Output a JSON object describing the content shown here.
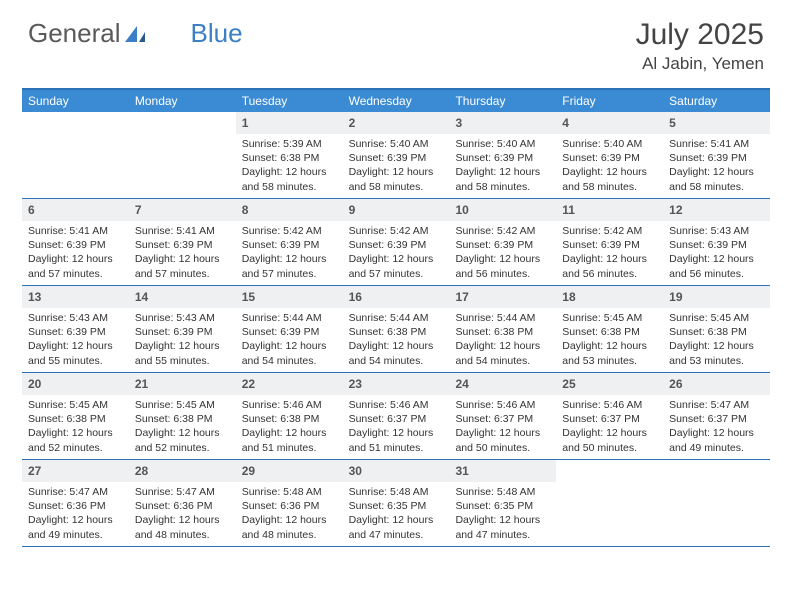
{
  "logo": {
    "text1": "General",
    "text2": "Blue"
  },
  "title": "July 2025",
  "location": "Al Jabin, Yemen",
  "colors": {
    "header_bg": "#3b8bd4",
    "border": "#2a72b5",
    "daynum_bg": "#eef0f2",
    "text": "#333333",
    "logo_gray": "#5a5a5a",
    "logo_blue": "#3b7fc4"
  },
  "weekdays": [
    "Sunday",
    "Monday",
    "Tuesday",
    "Wednesday",
    "Thursday",
    "Friday",
    "Saturday"
  ],
  "weeks": [
    [
      {
        "n": "",
        "sunrise": "",
        "sunset": "",
        "daylight": ""
      },
      {
        "n": "",
        "sunrise": "",
        "sunset": "",
        "daylight": ""
      },
      {
        "n": "1",
        "sunrise": "5:39 AM",
        "sunset": "6:38 PM",
        "daylight": "12 hours and 58 minutes."
      },
      {
        "n": "2",
        "sunrise": "5:40 AM",
        "sunset": "6:39 PM",
        "daylight": "12 hours and 58 minutes."
      },
      {
        "n": "3",
        "sunrise": "5:40 AM",
        "sunset": "6:39 PM",
        "daylight": "12 hours and 58 minutes."
      },
      {
        "n": "4",
        "sunrise": "5:40 AM",
        "sunset": "6:39 PM",
        "daylight": "12 hours and 58 minutes."
      },
      {
        "n": "5",
        "sunrise": "5:41 AM",
        "sunset": "6:39 PM",
        "daylight": "12 hours and 58 minutes."
      }
    ],
    [
      {
        "n": "6",
        "sunrise": "5:41 AM",
        "sunset": "6:39 PM",
        "daylight": "12 hours and 57 minutes."
      },
      {
        "n": "7",
        "sunrise": "5:41 AM",
        "sunset": "6:39 PM",
        "daylight": "12 hours and 57 minutes."
      },
      {
        "n": "8",
        "sunrise": "5:42 AM",
        "sunset": "6:39 PM",
        "daylight": "12 hours and 57 minutes."
      },
      {
        "n": "9",
        "sunrise": "5:42 AM",
        "sunset": "6:39 PM",
        "daylight": "12 hours and 57 minutes."
      },
      {
        "n": "10",
        "sunrise": "5:42 AM",
        "sunset": "6:39 PM",
        "daylight": "12 hours and 56 minutes."
      },
      {
        "n": "11",
        "sunrise": "5:42 AM",
        "sunset": "6:39 PM",
        "daylight": "12 hours and 56 minutes."
      },
      {
        "n": "12",
        "sunrise": "5:43 AM",
        "sunset": "6:39 PM",
        "daylight": "12 hours and 56 minutes."
      }
    ],
    [
      {
        "n": "13",
        "sunrise": "5:43 AM",
        "sunset": "6:39 PM",
        "daylight": "12 hours and 55 minutes."
      },
      {
        "n": "14",
        "sunrise": "5:43 AM",
        "sunset": "6:39 PM",
        "daylight": "12 hours and 55 minutes."
      },
      {
        "n": "15",
        "sunrise": "5:44 AM",
        "sunset": "6:39 PM",
        "daylight": "12 hours and 54 minutes."
      },
      {
        "n": "16",
        "sunrise": "5:44 AM",
        "sunset": "6:38 PM",
        "daylight": "12 hours and 54 minutes."
      },
      {
        "n": "17",
        "sunrise": "5:44 AM",
        "sunset": "6:38 PM",
        "daylight": "12 hours and 54 minutes."
      },
      {
        "n": "18",
        "sunrise": "5:45 AM",
        "sunset": "6:38 PM",
        "daylight": "12 hours and 53 minutes."
      },
      {
        "n": "19",
        "sunrise": "5:45 AM",
        "sunset": "6:38 PM",
        "daylight": "12 hours and 53 minutes."
      }
    ],
    [
      {
        "n": "20",
        "sunrise": "5:45 AM",
        "sunset": "6:38 PM",
        "daylight": "12 hours and 52 minutes."
      },
      {
        "n": "21",
        "sunrise": "5:45 AM",
        "sunset": "6:38 PM",
        "daylight": "12 hours and 52 minutes."
      },
      {
        "n": "22",
        "sunrise": "5:46 AM",
        "sunset": "6:38 PM",
        "daylight": "12 hours and 51 minutes."
      },
      {
        "n": "23",
        "sunrise": "5:46 AM",
        "sunset": "6:37 PM",
        "daylight": "12 hours and 51 minutes."
      },
      {
        "n": "24",
        "sunrise": "5:46 AM",
        "sunset": "6:37 PM",
        "daylight": "12 hours and 50 minutes."
      },
      {
        "n": "25",
        "sunrise": "5:46 AM",
        "sunset": "6:37 PM",
        "daylight": "12 hours and 50 minutes."
      },
      {
        "n": "26",
        "sunrise": "5:47 AM",
        "sunset": "6:37 PM",
        "daylight": "12 hours and 49 minutes."
      }
    ],
    [
      {
        "n": "27",
        "sunrise": "5:47 AM",
        "sunset": "6:36 PM",
        "daylight": "12 hours and 49 minutes."
      },
      {
        "n": "28",
        "sunrise": "5:47 AM",
        "sunset": "6:36 PM",
        "daylight": "12 hours and 48 minutes."
      },
      {
        "n": "29",
        "sunrise": "5:48 AM",
        "sunset": "6:36 PM",
        "daylight": "12 hours and 48 minutes."
      },
      {
        "n": "30",
        "sunrise": "5:48 AM",
        "sunset": "6:35 PM",
        "daylight": "12 hours and 47 minutes."
      },
      {
        "n": "31",
        "sunrise": "5:48 AM",
        "sunset": "6:35 PM",
        "daylight": "12 hours and 47 minutes."
      },
      {
        "n": "",
        "sunrise": "",
        "sunset": "",
        "daylight": ""
      },
      {
        "n": "",
        "sunrise": "",
        "sunset": "",
        "daylight": ""
      }
    ]
  ],
  "labels": {
    "sunrise": "Sunrise:",
    "sunset": "Sunset:",
    "daylight": "Daylight:"
  }
}
